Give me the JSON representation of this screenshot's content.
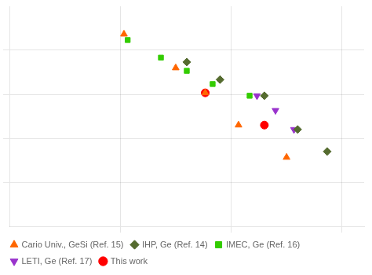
{
  "chart_data": {
    "type": "scatter",
    "xlim": [
      0.0,
      4.8
    ],
    "ylim": [
      0.0,
      7.5
    ],
    "xticks": [
      1.5,
      3.0,
      4.5
    ],
    "yticks": [
      1.5,
      3.0,
      4.5,
      6.0
    ],
    "grid": true,
    "tick_labels": false,
    "legend": "lower left",
    "series": [
      {
        "name": "Cario Univ., GeSi (Ref. 15)",
        "color": "#ff6600",
        "marker": "triangle_up",
        "x": [
          1.55,
          2.25,
          2.65,
          3.1,
          3.75
        ],
        "values": [
          6.55,
          5.4,
          4.55,
          3.45,
          2.35
        ]
      },
      {
        "name": "IHP, Ge (Ref. 14)",
        "color": "#556b2f",
        "marker": "diamond",
        "x": [
          2.4,
          2.85,
          3.45,
          3.9,
          4.3
        ],
        "values": [
          5.6,
          5.0,
          4.45,
          3.3,
          2.55
        ]
      },
      {
        "name": "IMEC, Ge (Ref. 16)",
        "color": "#33cc00",
        "marker": "square",
        "x": [
          1.6,
          2.05,
          2.4,
          2.75,
          3.25
        ],
        "values": [
          6.35,
          5.75,
          5.3,
          4.85,
          4.45
        ]
      },
      {
        "name": "LETI, Ge (Ref. 17)",
        "color": "#9933cc",
        "marker": "triangle_down",
        "x": [
          3.35,
          3.6,
          3.85
        ],
        "values": [
          4.45,
          3.95,
          3.3
        ]
      },
      {
        "name": "This work",
        "color": "#ff0000",
        "marker": "circle",
        "x": [
          2.65,
          3.45
        ],
        "values": [
          4.55,
          3.45
        ]
      }
    ]
  }
}
